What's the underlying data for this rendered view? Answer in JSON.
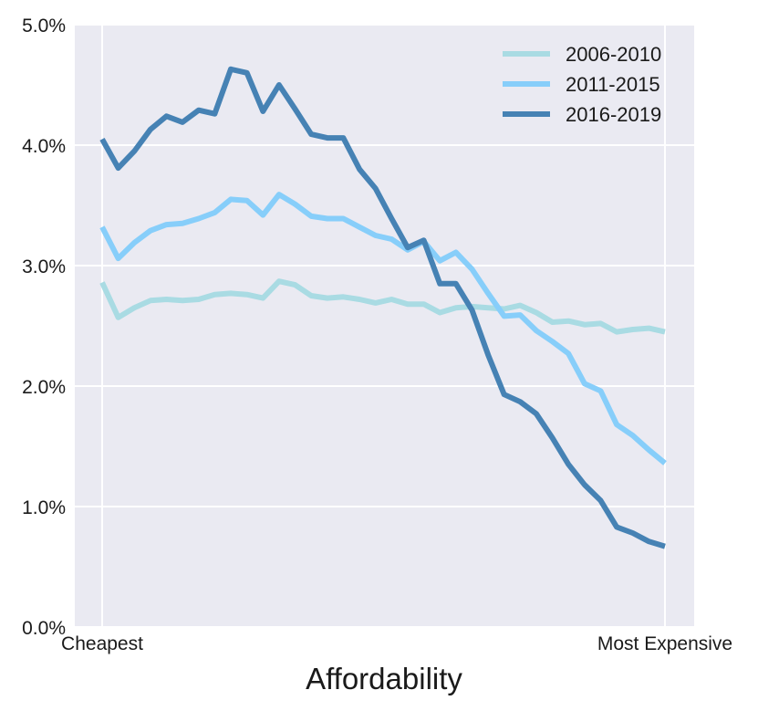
{
  "chart_data": {
    "type": "line",
    "title": "",
    "xlabel": "Affordability",
    "ylabel": "",
    "x_tick_labels": [
      "Cheapest",
      "Most Expensive"
    ],
    "y_ticks": [
      0,
      1,
      2,
      3,
      4,
      5
    ],
    "y_tick_labels": [
      "0.0%",
      "1.0%",
      "2.0%",
      "3.0%",
      "4.0%",
      "5.0%"
    ],
    "ylim": [
      0,
      5
    ],
    "n_points": 36,
    "grid": true,
    "legend_position": "top-right",
    "series": [
      {
        "name": "2006-2010",
        "color": "#a9dbe3",
        "values": [
          2.86,
          2.57,
          2.65,
          2.71,
          2.72,
          2.71,
          2.72,
          2.76,
          2.77,
          2.76,
          2.73,
          2.87,
          2.84,
          2.75,
          2.73,
          2.74,
          2.72,
          2.69,
          2.72,
          2.68,
          2.68,
          2.61,
          2.65,
          2.66,
          2.65,
          2.64,
          2.67,
          2.61,
          2.53,
          2.54,
          2.51,
          2.52,
          2.45,
          2.47,
          2.48,
          2.45
        ]
      },
      {
        "name": "2011-2015",
        "color": "#87cefa",
        "values": [
          3.32,
          3.06,
          3.19,
          3.29,
          3.34,
          3.35,
          3.39,
          3.44,
          3.55,
          3.54,
          3.42,
          3.59,
          3.51,
          3.41,
          3.39,
          3.39,
          3.32,
          3.25,
          3.22,
          3.13,
          3.2,
          3.04,
          3.11,
          2.97,
          2.77,
          2.58,
          2.59,
          2.46,
          2.37,
          2.27,
          2.02,
          1.96,
          1.68,
          1.59,
          1.47,
          1.36
        ]
      },
      {
        "name": "2016-2019",
        "color": "#4682b4",
        "values": [
          4.05,
          3.81,
          3.95,
          4.13,
          4.24,
          4.19,
          4.29,
          4.26,
          4.63,
          4.6,
          4.28,
          4.5,
          4.3,
          4.09,
          4.06,
          4.06,
          3.8,
          3.64,
          3.39,
          3.15,
          3.21,
          2.85,
          2.85,
          2.63,
          2.26,
          1.93,
          1.87,
          1.77,
          1.57,
          1.35,
          1.18,
          1.05,
          0.83,
          0.78,
          0.71,
          0.67
        ]
      }
    ]
  }
}
